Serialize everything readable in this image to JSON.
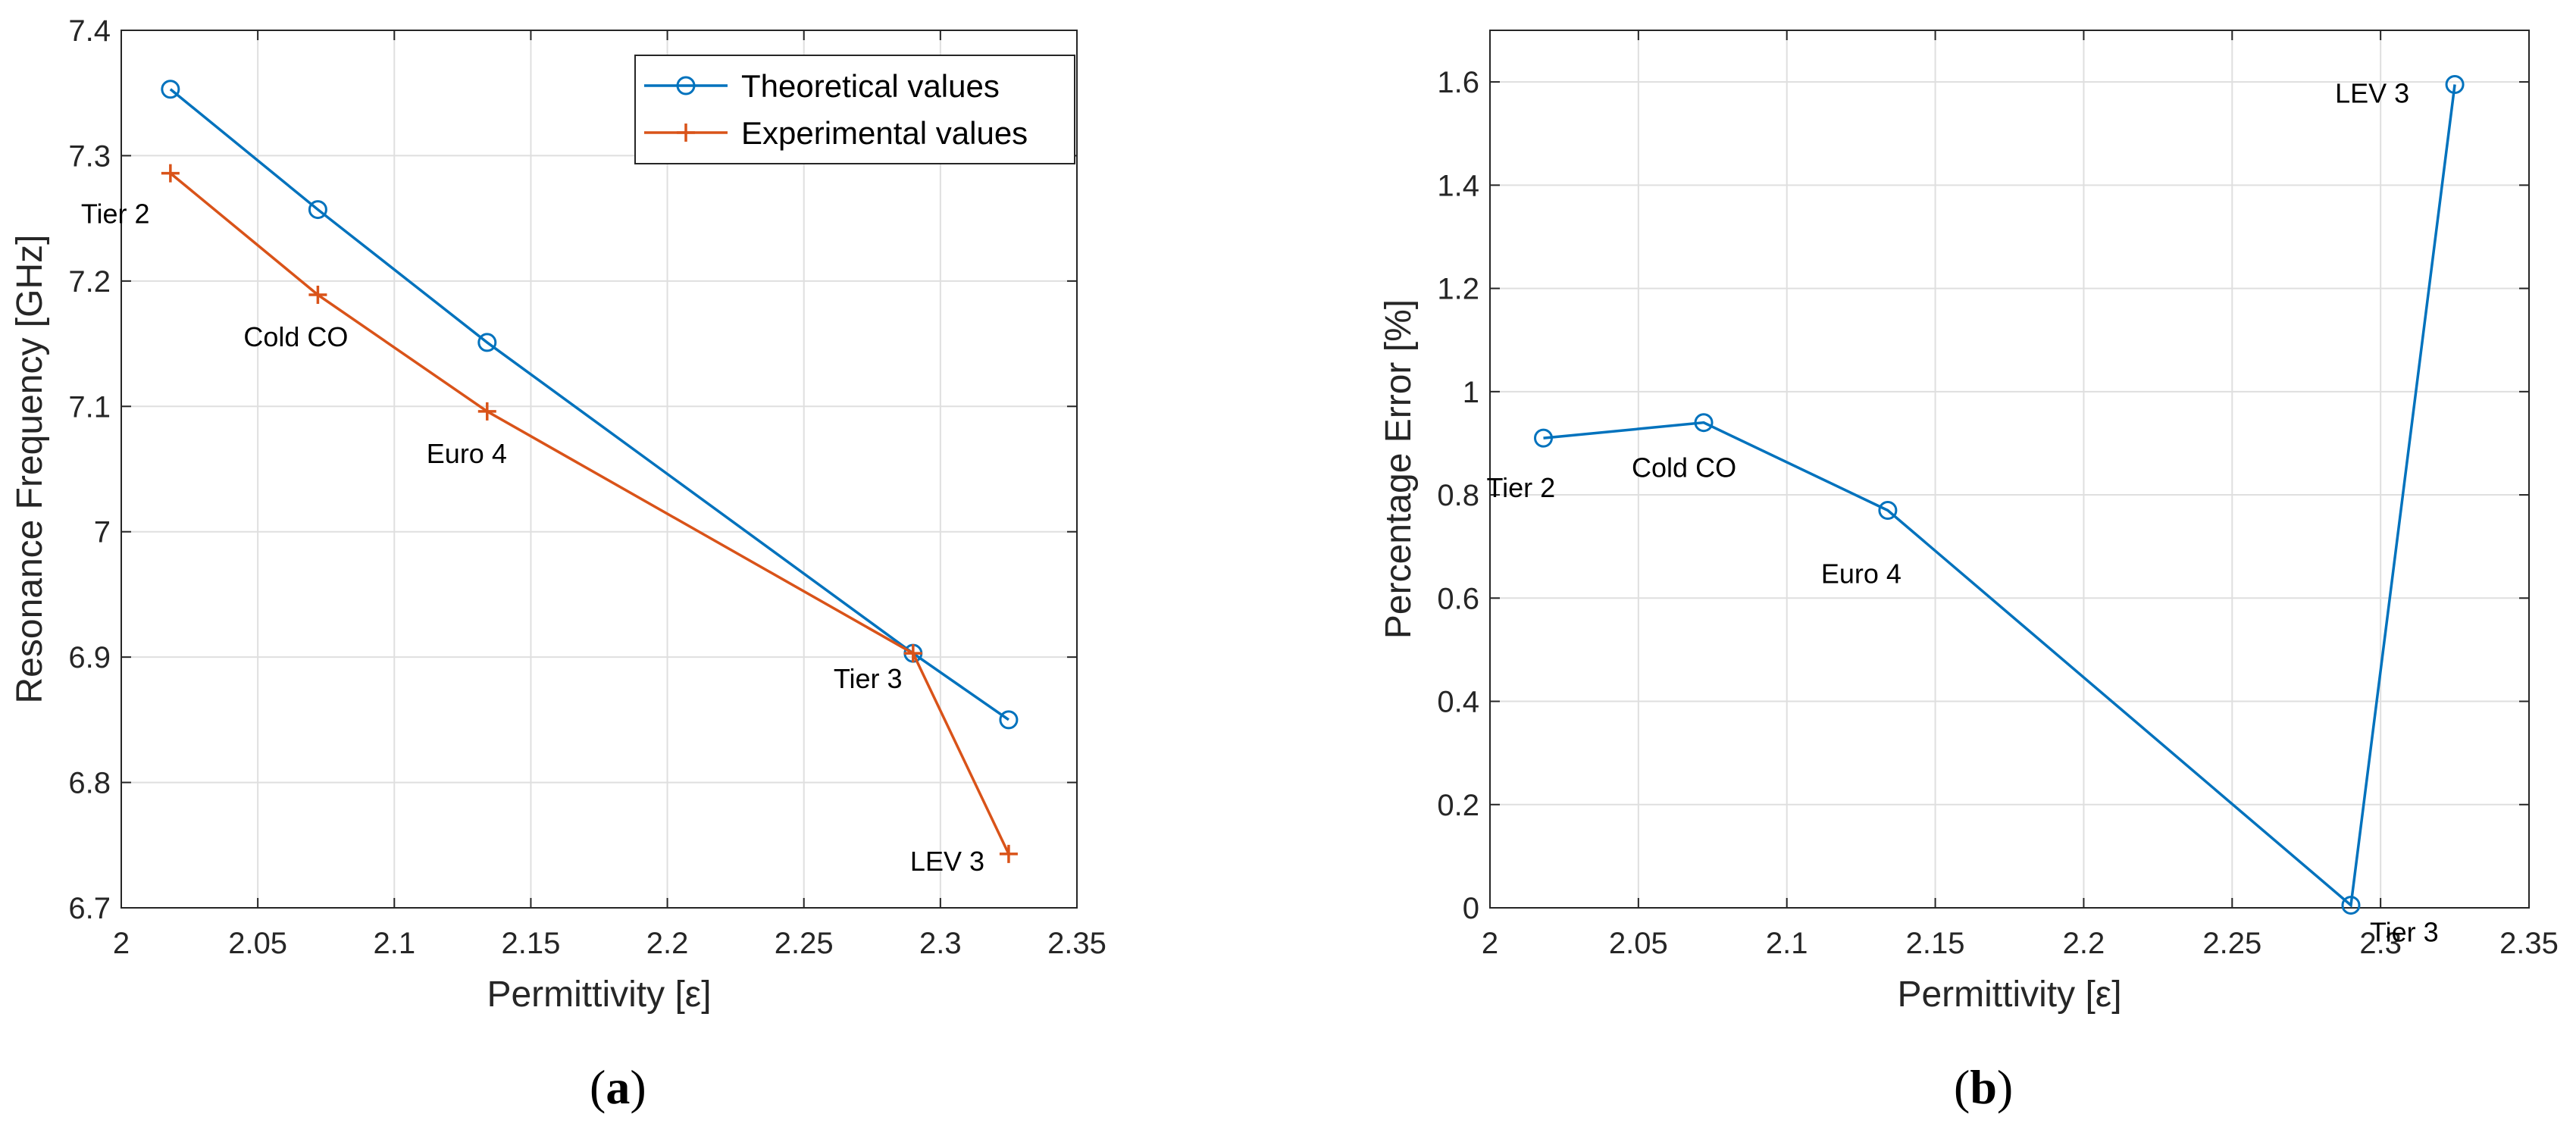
{
  "chart_data": [
    {
      "type": "line",
      "caption": {
        "open": "(",
        "letter": "a",
        "close": ")"
      },
      "xlabel": "Permittivity [ε]",
      "ylabel": "Resonance Frequency [GHz]",
      "xlim": [
        2.0,
        2.35
      ],
      "ylim": [
        6.7,
        7.4
      ],
      "xticks": [
        2.0,
        2.05,
        2.1,
        2.15,
        2.2,
        2.25,
        2.3,
        2.35
      ],
      "xtick_labels": [
        "2",
        "2.05",
        "2.1",
        "2.15",
        "2.2",
        "2.25",
        "2.3",
        "2.35"
      ],
      "yticks": [
        6.7,
        6.8,
        6.9,
        7.0,
        7.1,
        7.2,
        7.3,
        7.4
      ],
      "ytick_labels": [
        "6.7",
        "6.8",
        "6.9",
        "7",
        "7.1",
        "7.2",
        "7.3",
        "7.4"
      ],
      "grid": true,
      "legend_position": "top-right",
      "series": [
        {
          "name": "Theoretical values",
          "color": "#0072BD",
          "marker": "circle",
          "x": [
            2.018,
            2.072,
            2.134,
            2.29,
            2.325
          ],
          "y": [
            7.353,
            7.257,
            7.151,
            6.903,
            6.85
          ]
        },
        {
          "name": "Experimental values",
          "color": "#D95319",
          "marker": "plus",
          "x": [
            2.018,
            2.072,
            2.134,
            2.29,
            2.325
          ],
          "y": [
            7.286,
            7.189,
            7.096,
            6.903,
            6.743
          ]
        }
      ],
      "annotations": [
        {
          "text": "Tier 2",
          "x": 2.018,
          "y": 7.286
        },
        {
          "text": "Cold CO",
          "x": 2.072,
          "y": 7.189
        },
        {
          "text": "Euro 4",
          "x": 2.134,
          "y": 7.096
        },
        {
          "text": "Tier 3",
          "x": 2.29,
          "y": 6.903
        },
        {
          "text": "LEV 3",
          "x": 2.325,
          "y": 6.743
        }
      ]
    },
    {
      "type": "line",
      "caption": {
        "open": "(",
        "letter": "b",
        "close": ")"
      },
      "xlabel": "Permittivity [ε]",
      "ylabel": "Percentage Error [%]",
      "xlim": [
        2.0,
        2.35
      ],
      "ylim": [
        0,
        1.7
      ],
      "xticks": [
        2.0,
        2.05,
        2.1,
        2.15,
        2.2,
        2.25,
        2.3,
        2.35
      ],
      "xtick_labels": [
        "2",
        "2.05",
        "2.1",
        "2.15",
        "2.2",
        "2.25",
        "2.3",
        "2.35"
      ],
      "yticks": [
        0,
        0.2,
        0.4,
        0.6,
        0.8,
        1.0,
        1.2,
        1.4,
        1.6
      ],
      "ytick_labels": [
        "0",
        "0.2",
        "0.4",
        "0.6",
        "0.8",
        "1",
        "1.2",
        "1.4",
        "1.6"
      ],
      "grid": true,
      "series": [
        {
          "name": "Percentage error",
          "color": "#0072BD",
          "marker": "circle",
          "x": [
            2.018,
            2.072,
            2.134,
            2.29,
            2.325
          ],
          "y": [
            0.91,
            0.94,
            0.77,
            0.005,
            1.595
          ]
        }
      ],
      "annotations": [
        {
          "text": "Tier 2",
          "x": 2.018,
          "y": 0.91
        },
        {
          "text": "Cold CO",
          "x": 2.072,
          "y": 0.94
        },
        {
          "text": "Euro 4",
          "x": 2.134,
          "y": 0.77
        },
        {
          "text": "Tier 3",
          "x": 2.29,
          "y": 0.005
        },
        {
          "text": "LEV 3",
          "x": 2.325,
          "y": 1.595
        }
      ]
    }
  ]
}
